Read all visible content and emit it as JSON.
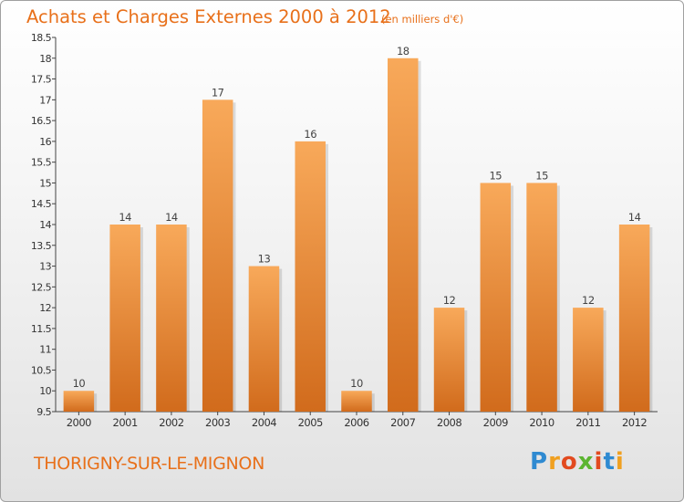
{
  "header": {
    "title": "Achats et Charges Externes 2000 à 2012",
    "subtitle": "(en milliers d'€)"
  },
  "footer": {
    "commune": "THORIGNY-SUR-LE-MIGNON",
    "brand": "Proxiti"
  },
  "colors": {
    "title": "#e8701a",
    "bar_light": "#f8a95a",
    "bar_dark": "#d16b1c",
    "logo_letters": [
      "#2f8ad1",
      "#f0a020",
      "#e24a1f",
      "#5cb531",
      "#e24a1f",
      "#2f8ad1",
      "#f0a020"
    ]
  },
  "chart_data": {
    "type": "bar",
    "title": "Achats et Charges Externes 2000 à 2012",
    "subtitle": "(en milliers d'€)",
    "categories": [
      "2000",
      "2001",
      "2002",
      "2003",
      "2004",
      "2005",
      "2006",
      "2007",
      "2008",
      "2009",
      "2010",
      "2011",
      "2012"
    ],
    "values": [
      10,
      14,
      14,
      17,
      13,
      16,
      10,
      18,
      12,
      15,
      15,
      12,
      14
    ],
    "ylim": [
      9.5,
      18.5
    ],
    "yticks": [
      "9.5",
      "10",
      "10.5",
      "11",
      "11.5",
      "12",
      "12.5",
      "13",
      "13.5",
      "14",
      "14.5",
      "15",
      "15.5",
      "16",
      "16.5",
      "17",
      "17.5",
      "18",
      "18.5"
    ],
    "grid": false,
    "xlabel": "",
    "ylabel": ""
  }
}
